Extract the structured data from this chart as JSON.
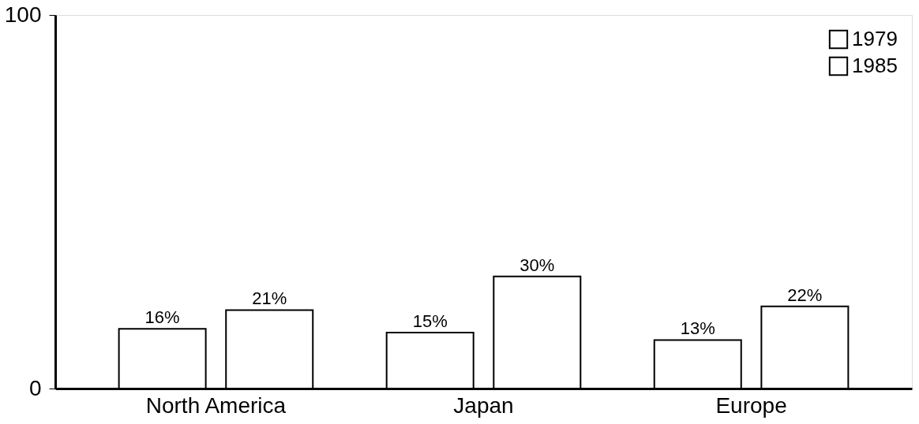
{
  "chart_data": {
    "type": "bar",
    "categories": [
      "North America",
      "Japan",
      "Europe"
    ],
    "series": [
      {
        "name": "1979",
        "color": "#ffffff",
        "values": [
          16,
          15,
          13
        ],
        "value_labels": [
          "16%",
          "15%",
          "13%"
        ]
      },
      {
        "name": "1985",
        "color": "#ffffff",
        "values": [
          21,
          30,
          22
        ],
        "value_labels": [
          "21%",
          "30%",
          "22%"
        ]
      }
    ],
    "ylim": [
      0,
      100
    ],
    "yticks": [
      0,
      100
    ],
    "legend": "top right"
  }
}
